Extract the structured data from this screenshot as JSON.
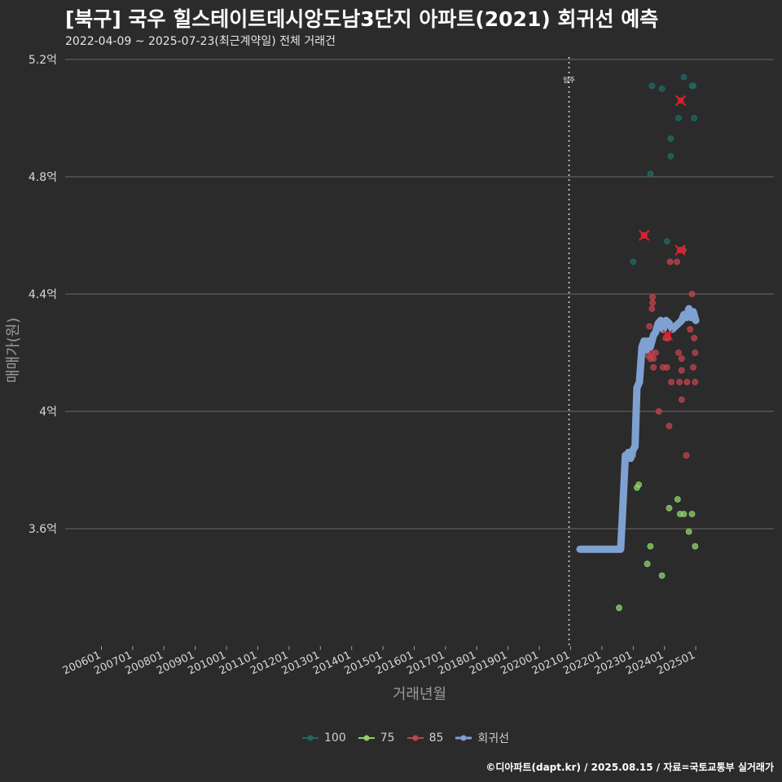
{
  "title": "[북구] 국우 힐스테이트데시앙도남3단지 아파트(2021) 회귀선 예측",
  "subtitle": "2022-04-09 ~ 2025-07-23(최근계약일) 전체 거래건",
  "caption": "©디아파트(dapt.kr) / 2025.08.15 / 자료=국토교통부 실거래가",
  "colors": {
    "background": "#2b2b2c",
    "grid": "#6a6a6a",
    "s100": "#1f6b63",
    "s75": "#8fd16a",
    "s85": "#c0444c",
    "regression": "#7fa1d1",
    "highlight": "#e0202a"
  },
  "legend": {
    "items": [
      {
        "key": "s100",
        "label": "100"
      },
      {
        "key": "s75",
        "label": "75"
      },
      {
        "key": "s85",
        "label": "85"
      },
      {
        "key": "regression",
        "label": "회귀선"
      }
    ]
  },
  "chart_data": {
    "type": "scatter",
    "ylabel": "매매가(원)",
    "xlabel": "거래년월",
    "x_ticks": [
      "200601",
      "200701",
      "200801",
      "200901",
      "201001",
      "201101",
      "201201",
      "201301",
      "201401",
      "201501",
      "201601",
      "201701",
      "201801",
      "201901",
      "202001",
      "202101",
      "202201",
      "202301",
      "202401",
      "202501"
    ],
    "y_ticks": [
      {
        "value": 3.6,
        "label": "3.6억"
      },
      {
        "value": 4.0,
        "label": "4억"
      },
      {
        "value": 4.4,
        "label": "4.4억"
      },
      {
        "value": 4.8,
        "label": "4.8억"
      },
      {
        "value": 5.2,
        "label": "5.2억"
      }
    ],
    "xlim": [
      2005.0,
      2025.85
    ],
    "ylim": [
      3.2,
      5.2
    ],
    "annotation": {
      "x": 2020.95,
      "label": "입주"
    },
    "series": [
      {
        "name": "100",
        "color_key": "s100",
        "points": [
          [
            2023.0,
            4.51
          ],
          [
            2023.55,
            4.81
          ],
          [
            2023.6,
            5.11
          ],
          [
            2023.92,
            5.1
          ],
          [
            2024.08,
            4.58
          ],
          [
            2024.2,
            4.87
          ],
          [
            2024.2,
            4.93
          ],
          [
            2024.45,
            5.0
          ],
          [
            2024.62,
            5.14
          ],
          [
            2024.88,
            5.11
          ],
          [
            2024.92,
            5.11
          ],
          [
            2024.95,
            5.0
          ]
        ]
      },
      {
        "name": "75",
        "color_key": "s75",
        "points": [
          [
            2022.55,
            3.33
          ],
          [
            2023.12,
            3.74
          ],
          [
            2023.18,
            3.75
          ],
          [
            2023.45,
            3.48
          ],
          [
            2023.55,
            3.54
          ],
          [
            2023.92,
            3.44
          ],
          [
            2024.15,
            3.67
          ],
          [
            2024.42,
            3.7
          ],
          [
            2024.5,
            3.65
          ],
          [
            2024.62,
            3.65
          ],
          [
            2024.78,
            3.59
          ],
          [
            2024.88,
            3.65
          ],
          [
            2024.98,
            3.54
          ]
        ]
      },
      {
        "name": "85",
        "color_key": "s85",
        "points": [
          [
            2022.95,
            3.85
          ],
          [
            2023.0,
            3.85
          ],
          [
            2023.35,
            4.6
          ],
          [
            2023.45,
            4.21
          ],
          [
            2023.48,
            4.19
          ],
          [
            2023.52,
            4.29
          ],
          [
            2023.55,
            4.18
          ],
          [
            2023.58,
            4.2
          ],
          [
            2023.6,
            4.35
          ],
          [
            2023.62,
            4.39
          ],
          [
            2023.62,
            4.37
          ],
          [
            2023.65,
            4.18
          ],
          [
            2023.65,
            4.15
          ],
          [
            2023.72,
            4.2
          ],
          [
            2023.82,
            4.0
          ],
          [
            2023.95,
            4.15
          ],
          [
            2024.05,
            4.25
          ],
          [
            2024.08,
            4.15
          ],
          [
            2024.1,
            4.26
          ],
          [
            2024.12,
            4.25
          ],
          [
            2024.15,
            3.95
          ],
          [
            2024.18,
            4.51
          ],
          [
            2024.22,
            4.1
          ],
          [
            2024.4,
            4.51
          ],
          [
            2024.45,
            4.2
          ],
          [
            2024.48,
            4.1
          ],
          [
            2024.5,
            4.55
          ],
          [
            2024.55,
            4.18
          ],
          [
            2024.55,
            4.14
          ],
          [
            2024.55,
            4.04
          ],
          [
            2024.6,
            4.55
          ],
          [
            2024.7,
            3.85
          ],
          [
            2024.72,
            4.1
          ],
          [
            2024.82,
            4.28
          ],
          [
            2024.88,
            4.4
          ],
          [
            2024.92,
            4.15
          ],
          [
            2024.95,
            4.25
          ],
          [
            2024.98,
            4.2
          ],
          [
            2024.98,
            4.1
          ]
        ]
      }
    ],
    "highlights": [
      [
        2023.35,
        4.6
      ],
      [
        2024.1,
        4.26
      ],
      [
        2024.5,
        4.55
      ],
      [
        2024.52,
        5.06
      ]
    ],
    "regression": {
      "name": "회귀선",
      "points": [
        [
          2021.3,
          3.53
        ],
        [
          2022.6,
          3.53
        ],
        [
          2022.66,
          3.65
        ],
        [
          2022.75,
          3.85
        ],
        [
          2022.8,
          3.84
        ],
        [
          2022.85,
          3.86
        ],
        [
          2022.92,
          3.84
        ],
        [
          2023.0,
          3.87
        ],
        [
          2023.06,
          3.88
        ],
        [
          2023.12,
          4.08
        ],
        [
          2023.2,
          4.1
        ],
        [
          2023.28,
          4.22
        ],
        [
          2023.35,
          4.24
        ],
        [
          2023.42,
          4.21
        ],
        [
          2023.48,
          4.24
        ],
        [
          2023.55,
          4.22
        ],
        [
          2023.65,
          4.26
        ],
        [
          2023.72,
          4.27
        ],
        [
          2023.8,
          4.3
        ],
        [
          2023.88,
          4.31
        ],
        [
          2023.96,
          4.28
        ],
        [
          2024.05,
          4.31
        ],
        [
          2024.15,
          4.3
        ],
        [
          2024.25,
          4.28
        ],
        [
          2024.35,
          4.29
        ],
        [
          2024.45,
          4.3
        ],
        [
          2024.55,
          4.31
        ],
        [
          2024.62,
          4.33
        ],
        [
          2024.7,
          4.32
        ],
        [
          2024.78,
          4.35
        ],
        [
          2024.85,
          4.32
        ],
        [
          2024.92,
          4.34
        ],
        [
          2025.0,
          4.31
        ]
      ]
    }
  }
}
